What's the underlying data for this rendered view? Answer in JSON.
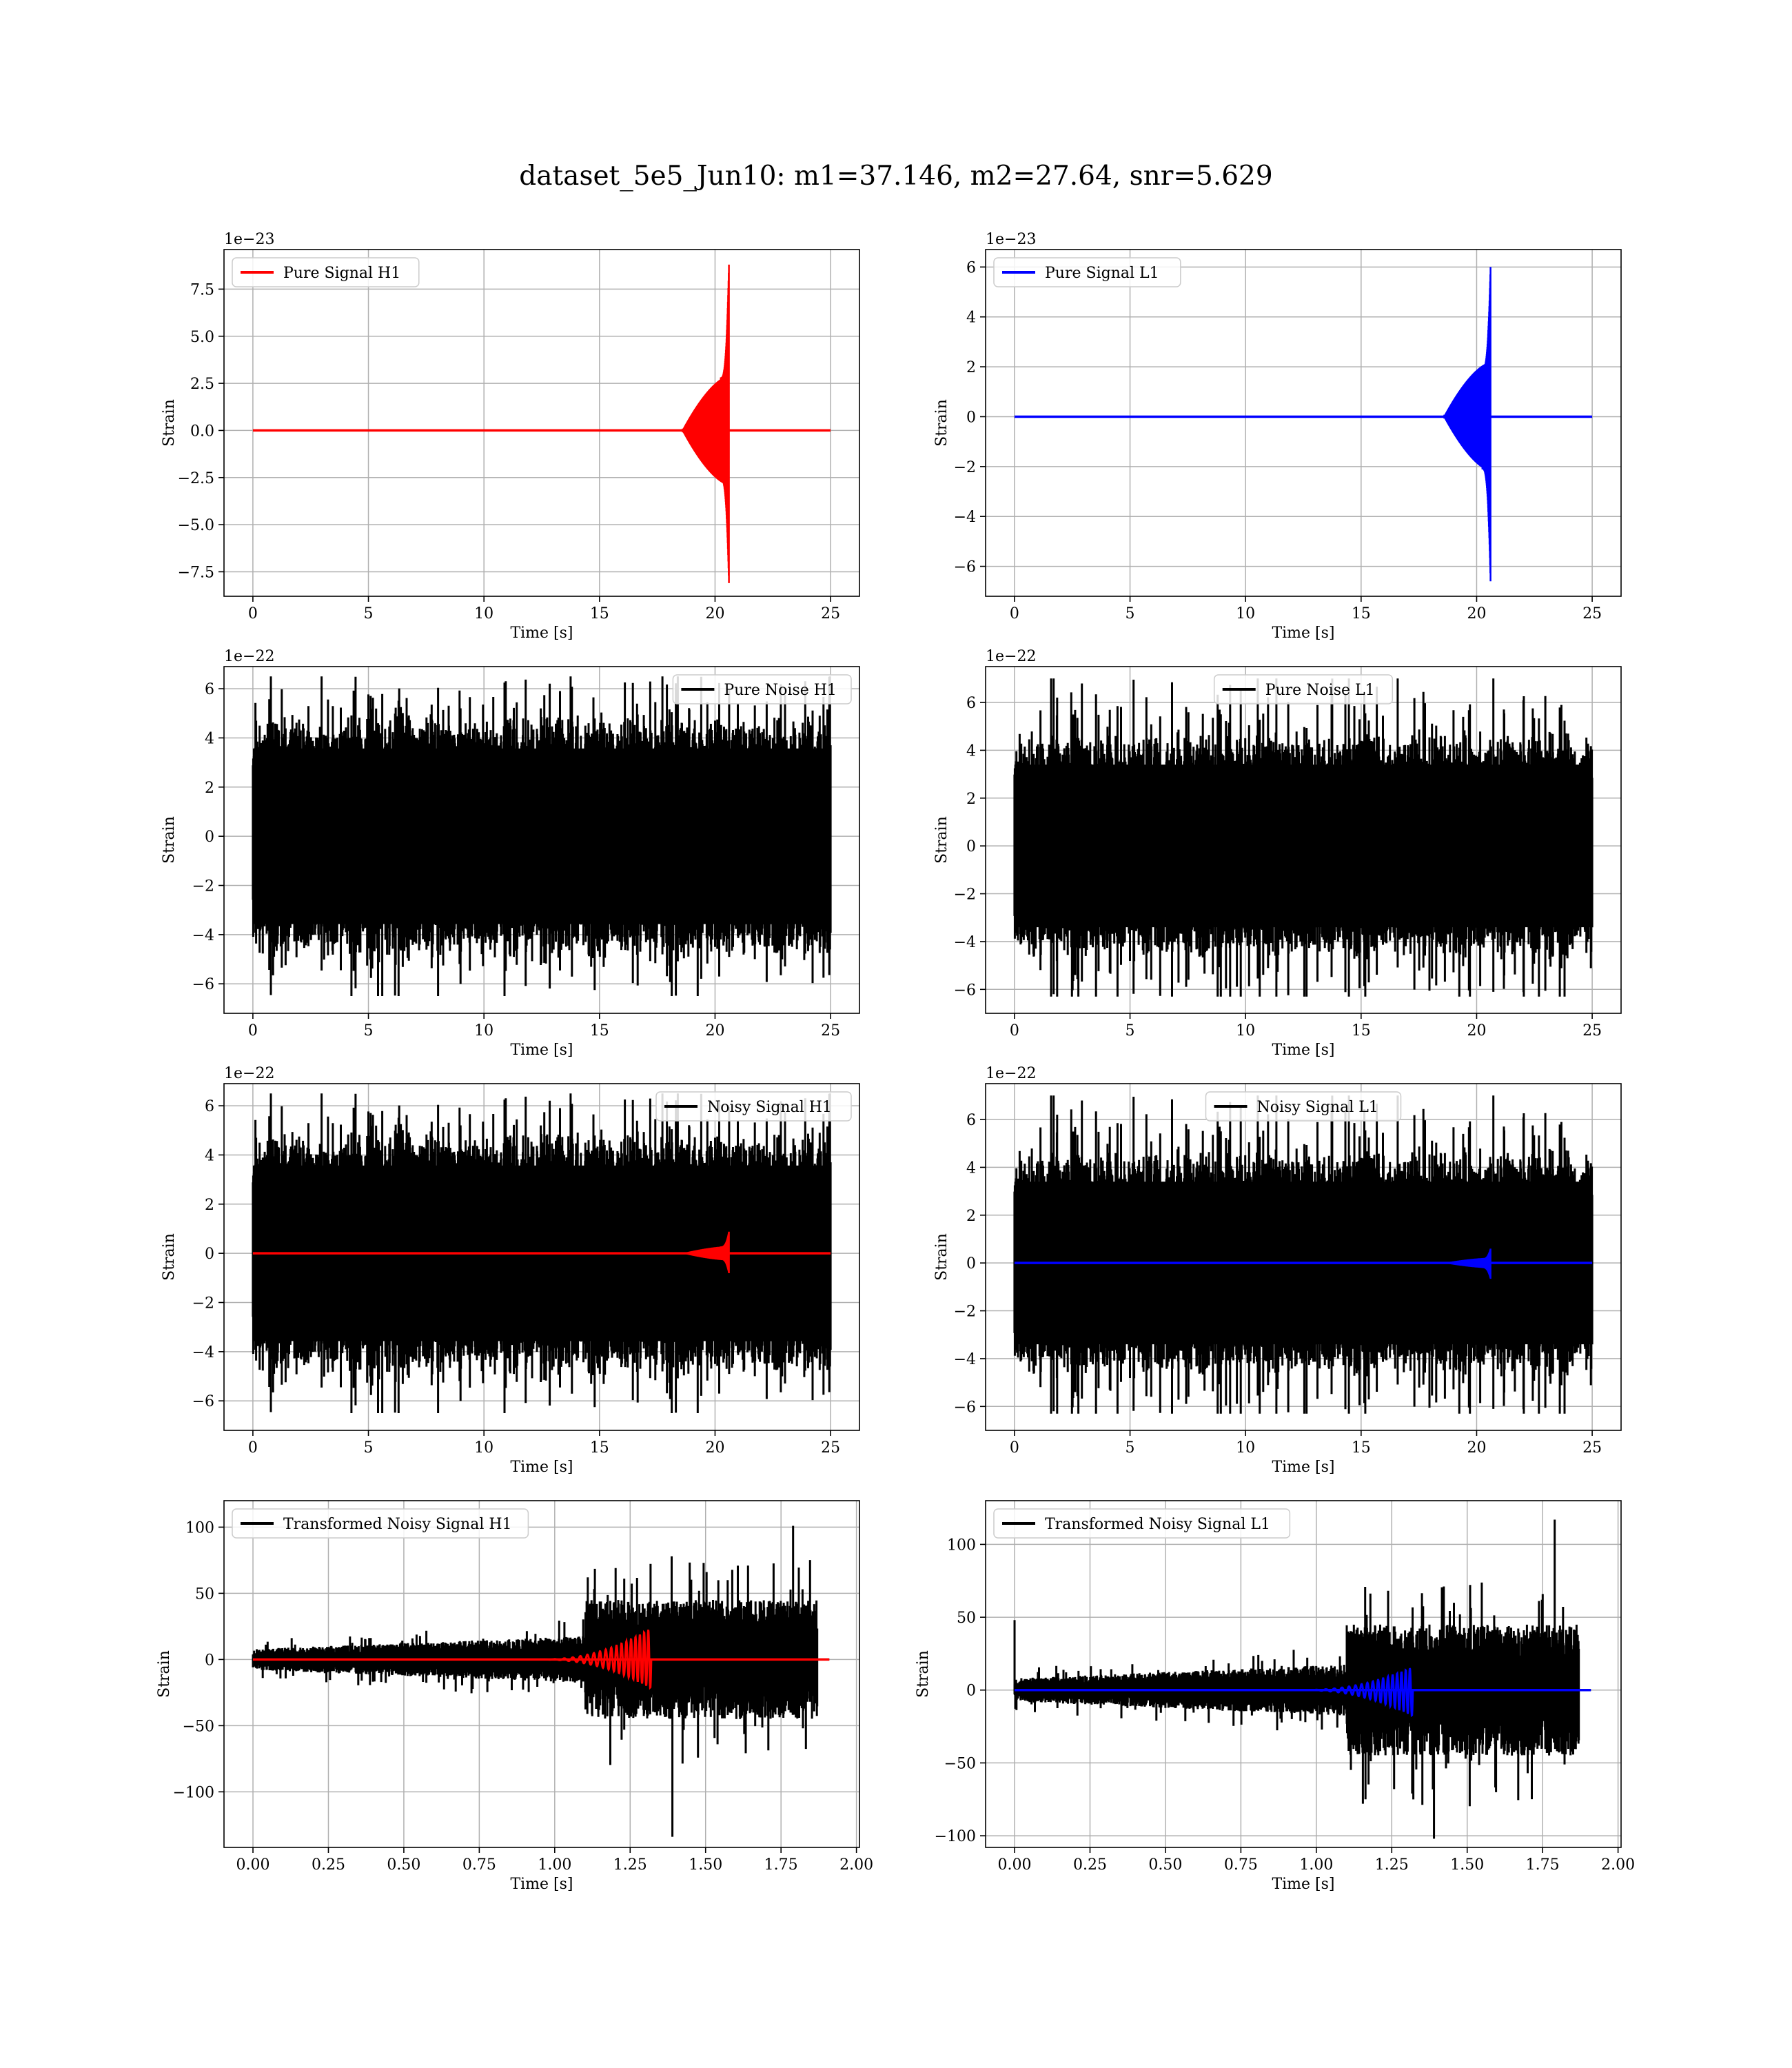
{
  "title": "dataset_5e5_Jun10: m1=37.146, m2=27.64, snr=5.629",
  "colors": {
    "signal_h1": "#ff0000",
    "signal_l1": "#0000ff",
    "noise": "#000000"
  },
  "chart_data": [
    {
      "id": "pure-signal-h1",
      "type": "line",
      "ylabel": "Strain",
      "xlabel": "Time [s]",
      "offset_text": "1e−23",
      "legend_loc": "upper left",
      "xlim": [
        -1.25,
        26.25
      ],
      "ylim": [
        -8.8,
        9.6
      ],
      "xticks": [
        0,
        5,
        10,
        15,
        20,
        25
      ],
      "xtick_labels": [
        "0",
        "5",
        "10",
        "15",
        "20",
        "25"
      ],
      "yticks": [
        -7.5,
        -5.0,
        -2.5,
        0.0,
        2.5,
        5.0,
        7.5
      ],
      "ytick_labels": [
        "−7.5",
        "−5.0",
        "−2.5",
        "0.0",
        "2.5",
        "5.0",
        "7.5"
      ],
      "series": [
        {
          "name": "Pure Signal H1",
          "color": "#ff0000",
          "kind": "chirp",
          "x_start": 0,
          "x_end": 25,
          "merger_t": 20.6,
          "peak_pos": 8.8,
          "peak_neg": -8.1,
          "early_amp": 0.1
        }
      ]
    },
    {
      "id": "pure-signal-l1",
      "type": "line",
      "ylabel": "Strain",
      "xlabel": "Time [s]",
      "offset_text": "1e−23",
      "legend_loc": "upper left",
      "xlim": [
        -1.25,
        26.25
      ],
      "ylim": [
        -7.2,
        6.7
      ],
      "xticks": [
        0,
        5,
        10,
        15,
        20,
        25
      ],
      "xtick_labels": [
        "0",
        "5",
        "10",
        "15",
        "20",
        "25"
      ],
      "yticks": [
        -6,
        -4,
        -2,
        0,
        2,
        4,
        6
      ],
      "ytick_labels": [
        "−6",
        "−4",
        "−2",
        "0",
        "2",
        "4",
        "6"
      ],
      "series": [
        {
          "name": "Pure Signal L1",
          "color": "#0000ff",
          "kind": "chirp",
          "x_start": 0,
          "x_end": 25,
          "merger_t": 20.6,
          "peak_pos": 6.0,
          "peak_neg": -6.6,
          "early_amp": 0.08
        }
      ]
    },
    {
      "id": "pure-noise-h1",
      "type": "line",
      "ylabel": "Strain",
      "xlabel": "Time [s]",
      "offset_text": "1e−22",
      "legend_loc": "upper right",
      "xlim": [
        -1.25,
        26.25
      ],
      "ylim": [
        -7.2,
        6.9
      ],
      "xticks": [
        0,
        5,
        10,
        15,
        20,
        25
      ],
      "xtick_labels": [
        "0",
        "5",
        "10",
        "15",
        "20",
        "25"
      ],
      "yticks": [
        -6,
        -4,
        -2,
        0,
        2,
        4,
        6
      ],
      "ytick_labels": [
        "−6",
        "−4",
        "−2",
        "0",
        "2",
        "4",
        "6"
      ],
      "series": [
        {
          "name": "Pure Noise H1",
          "color": "#000000",
          "kind": "noise",
          "x_start": 0,
          "x_end": 25,
          "core_amp": 4.2,
          "peak_pos": 6.5,
          "peak_neg": -6.5,
          "seed": 11
        }
      ]
    },
    {
      "id": "pure-noise-l1",
      "type": "line",
      "ylabel": "Strain",
      "xlabel": "Time [s]",
      "offset_text": "1e−22",
      "legend_loc": "upper center",
      "xlim": [
        -1.25,
        26.25
      ],
      "ylim": [
        -7.0,
        7.5
      ],
      "xticks": [
        0,
        5,
        10,
        15,
        20,
        25
      ],
      "xtick_labels": [
        "0",
        "5",
        "10",
        "15",
        "20",
        "25"
      ],
      "yticks": [
        -6,
        -4,
        -2,
        0,
        2,
        4,
        6
      ],
      "ytick_labels": [
        "−6",
        "−4",
        "−2",
        "0",
        "2",
        "4",
        "6"
      ],
      "series": [
        {
          "name": "Pure Noise L1",
          "color": "#000000",
          "kind": "noise",
          "x_start": 0,
          "x_end": 25,
          "core_amp": 4.0,
          "peak_pos": 7.0,
          "peak_neg": -6.3,
          "seed": 23
        }
      ]
    },
    {
      "id": "noisy-signal-h1",
      "type": "line",
      "ylabel": "Strain",
      "xlabel": "Time [s]",
      "offset_text": "1e−22",
      "legend_loc": "upper right",
      "xlim": [
        -1.25,
        26.25
      ],
      "ylim": [
        -7.2,
        6.9
      ],
      "xticks": [
        0,
        5,
        10,
        15,
        20,
        25
      ],
      "xtick_labels": [
        "0",
        "5",
        "10",
        "15",
        "20",
        "25"
      ],
      "yticks": [
        -6,
        -4,
        -2,
        0,
        2,
        4,
        6
      ],
      "ytick_labels": [
        "−6",
        "−4",
        "−2",
        "0",
        "2",
        "4",
        "6"
      ],
      "series": [
        {
          "name": "Noisy Signal H1",
          "color": "#000000",
          "kind": "noise",
          "x_start": 0,
          "x_end": 25,
          "core_amp": 4.2,
          "peak_pos": 6.5,
          "peak_neg": -6.5,
          "seed": 11
        },
        {
          "name": "",
          "color": "#ff0000",
          "kind": "chirp",
          "x_start": 0,
          "x_end": 25,
          "merger_t": 20.6,
          "peak_pos": 0.88,
          "peak_neg": -0.81,
          "early_amp": 0.01
        }
      ]
    },
    {
      "id": "noisy-signal-l1",
      "type": "line",
      "ylabel": "Strain",
      "xlabel": "Time [s]",
      "offset_text": "1e−22",
      "legend_loc": "upper center",
      "xlim": [
        -1.25,
        26.25
      ],
      "ylim": [
        -7.0,
        7.5
      ],
      "xticks": [
        0,
        5,
        10,
        15,
        20,
        25
      ],
      "xtick_labels": [
        "0",
        "5",
        "10",
        "15",
        "20",
        "25"
      ],
      "yticks": [
        -6,
        -4,
        -2,
        0,
        2,
        4,
        6
      ],
      "ytick_labels": [
        "−6",
        "−4",
        "−2",
        "0",
        "2",
        "4",
        "6"
      ],
      "series": [
        {
          "name": "Noisy Signal L1",
          "color": "#000000",
          "kind": "noise",
          "x_start": 0,
          "x_end": 25,
          "core_amp": 4.0,
          "peak_pos": 7.0,
          "peak_neg": -6.3,
          "seed": 23
        },
        {
          "name": "",
          "color": "#0000ff",
          "kind": "chirp",
          "x_start": 0,
          "x_end": 25,
          "merger_t": 20.6,
          "peak_pos": 0.6,
          "peak_neg": -0.66,
          "early_amp": 0.01
        }
      ]
    },
    {
      "id": "transformed-h1",
      "type": "line",
      "ylabel": "Strain",
      "xlabel": "Time [s]",
      "offset_text": "",
      "legend_loc": "upper left",
      "xlim": [
        -0.096,
        2.01
      ],
      "ylim": [
        -142,
        120
      ],
      "xticks": [
        0,
        0.25,
        0.5,
        0.75,
        1.0,
        1.25,
        1.5,
        1.75,
        2.0
      ],
      "xtick_labels": [
        "0.00",
        "0.25",
        "0.50",
        "0.75",
        "1.00",
        "1.25",
        "1.50",
        "1.75",
        "2.00"
      ],
      "yticks": [
        -100,
        -50,
        0,
        50,
        100
      ],
      "ytick_labels": [
        "−100",
        "−50",
        "0",
        "50",
        "100"
      ],
      "series": [
        {
          "name": "Transformed Noisy Signal H1",
          "color": "#000000",
          "kind": "tnoise",
          "x_start": 0,
          "x_end": 1.91,
          "step_t": 1.1,
          "env_before": 8,
          "env_after": 45,
          "noise_end": 1.87,
          "peak_pos": 101,
          "peak_neg": -134,
          "seed": 37
        },
        {
          "name": "",
          "color": "#ff0000",
          "kind": "tchirp",
          "x_start": 0,
          "x_end": 1.91,
          "merger_t": 1.32,
          "start_t": 0.95,
          "peak_pos": 24,
          "peak_neg": -22
        }
      ]
    },
    {
      "id": "transformed-l1",
      "type": "line",
      "ylabel": "Strain",
      "xlabel": "Time [s]",
      "offset_text": "",
      "legend_loc": "upper left",
      "xlim": [
        -0.096,
        2.01
      ],
      "ylim": [
        -108,
        130
      ],
      "xticks": [
        0,
        0.25,
        0.5,
        0.75,
        1.0,
        1.25,
        1.5,
        1.75,
        2.0
      ],
      "xtick_labels": [
        "0.00",
        "0.25",
        "0.50",
        "0.75",
        "1.00",
        "1.25",
        "1.50",
        "1.75",
        "2.00"
      ],
      "yticks": [
        -100,
        -50,
        0,
        50,
        100
      ],
      "ytick_labels": [
        "−100",
        "−50",
        "0",
        "50",
        "100"
      ],
      "series": [
        {
          "name": "Transformed Noisy Signal L1",
          "color": "#000000",
          "kind": "tnoise",
          "x_start": 0,
          "x_end": 1.91,
          "step_t": 1.1,
          "env_before": 8,
          "env_after": 45,
          "noise_end": 1.87,
          "peak_pos": 117,
          "peak_neg": -102,
          "spike_t0": 48,
          "seed": 53
        },
        {
          "name": "",
          "color": "#0000ff",
          "kind": "tchirp",
          "x_start": 0,
          "x_end": 1.91,
          "merger_t": 1.32,
          "start_t": 0.95,
          "peak_pos": 16,
          "peak_neg": -18
        }
      ]
    }
  ]
}
